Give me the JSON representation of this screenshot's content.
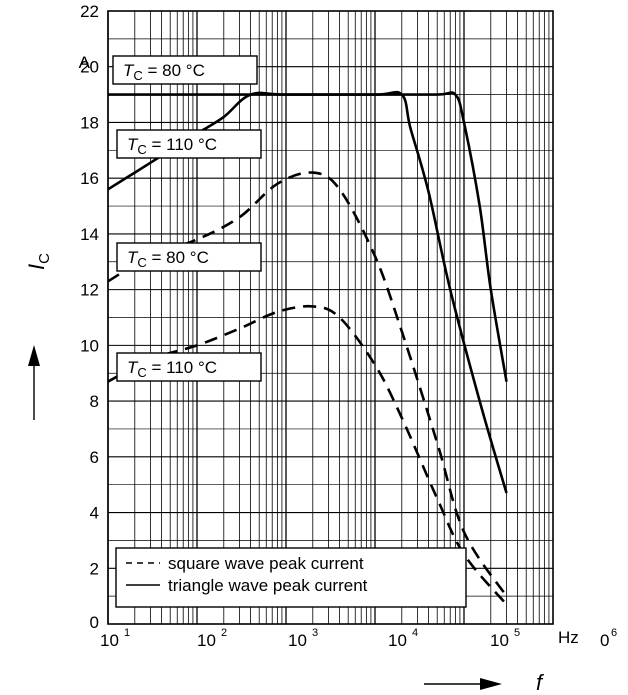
{
  "chart_data": {
    "type": "line",
    "x_scale": "log",
    "xlim": [
      10,
      1000000
    ],
    "ylim": [
      0,
      22
    ],
    "grid": true,
    "x_ticks": [
      {
        "base": "10",
        "exp": "1"
      },
      {
        "base": "10",
        "exp": "2"
      },
      {
        "base": "10",
        "exp": "3"
      },
      {
        "base": "10",
        "exp": "4"
      },
      {
        "base": "10",
        "exp": "5"
      },
      {
        "base": "",
        "exp": "6"
      }
    ],
    "x_unit": "Hz",
    "x_unit_prefix": "0",
    "y_ticks": [
      "0",
      "2",
      "4",
      "6",
      "8",
      "10",
      "12",
      "14",
      "16",
      "18",
      "20",
      "22"
    ],
    "y_unit": "A",
    "xlabel": "f",
    "ylabel": "I",
    "ylabel_sub": "C",
    "legend": {
      "placement": "bottom-left",
      "items": [
        {
          "style": "dashed",
          "label": "square wave peak current"
        },
        {
          "style": "solid",
          "label": "triangle wave peak current"
        }
      ]
    },
    "series": [
      {
        "style": "solid",
        "tag": {
          "var": "T",
          "sub": "C",
          "text": " = 80 °C"
        },
        "points": [
          [
            10,
            19.0
          ],
          [
            100,
            19.0
          ],
          [
            1000,
            19.0
          ],
          [
            10000,
            19.0
          ],
          [
            50000,
            19.0
          ],
          [
            80000,
            19.0
          ],
          [
            100000,
            18.0
          ],
          [
            150000,
            15.0
          ],
          [
            200000,
            12.0
          ],
          [
            300000,
            8.7
          ]
        ]
      },
      {
        "style": "solid",
        "tag": {
          "var": "T",
          "sub": "C",
          "text": " = 110 °C"
        },
        "points": [
          [
            10,
            15.6
          ],
          [
            20,
            16.2
          ],
          [
            50,
            17.0
          ],
          [
            100,
            17.6
          ],
          [
            200,
            18.2
          ],
          [
            400,
            19.0
          ],
          [
            1000,
            19.0
          ],
          [
            10000,
            19.0
          ],
          [
            20000,
            19.0
          ],
          [
            25000,
            17.8
          ],
          [
            40000,
            15.5
          ],
          [
            70000,
            12.0
          ],
          [
            150000,
            8.0
          ],
          [
            300000,
            4.7
          ]
        ]
      },
      {
        "style": "dashed",
        "tag": {
          "var": "T",
          "sub": "C",
          "text": " = 80 °C"
        },
        "points": [
          [
            10,
            12.3
          ],
          [
            30,
            13.2
          ],
          [
            100,
            13.8
          ],
          [
            300,
            14.6
          ],
          [
            800,
            15.8
          ],
          [
            2000,
            16.2
          ],
          [
            4000,
            15.6
          ],
          [
            10000,
            13.2
          ],
          [
            20000,
            10.5
          ],
          [
            50000,
            6.5
          ],
          [
            100000,
            3.3
          ],
          [
            300000,
            1.0
          ]
        ]
      },
      {
        "style": "dashed",
        "tag": {
          "var": "T",
          "sub": "C",
          "text": " = 110 °C"
        },
        "points": [
          [
            10,
            8.7
          ],
          [
            30,
            9.5
          ],
          [
            100,
            10.0
          ],
          [
            300,
            10.6
          ],
          [
            800,
            11.2
          ],
          [
            2000,
            11.4
          ],
          [
            4000,
            11.0
          ],
          [
            10000,
            9.3
          ],
          [
            20000,
            7.4
          ],
          [
            50000,
            4.5
          ],
          [
            100000,
            2.5
          ],
          [
            300000,
            0.7
          ]
        ]
      }
    ]
  }
}
